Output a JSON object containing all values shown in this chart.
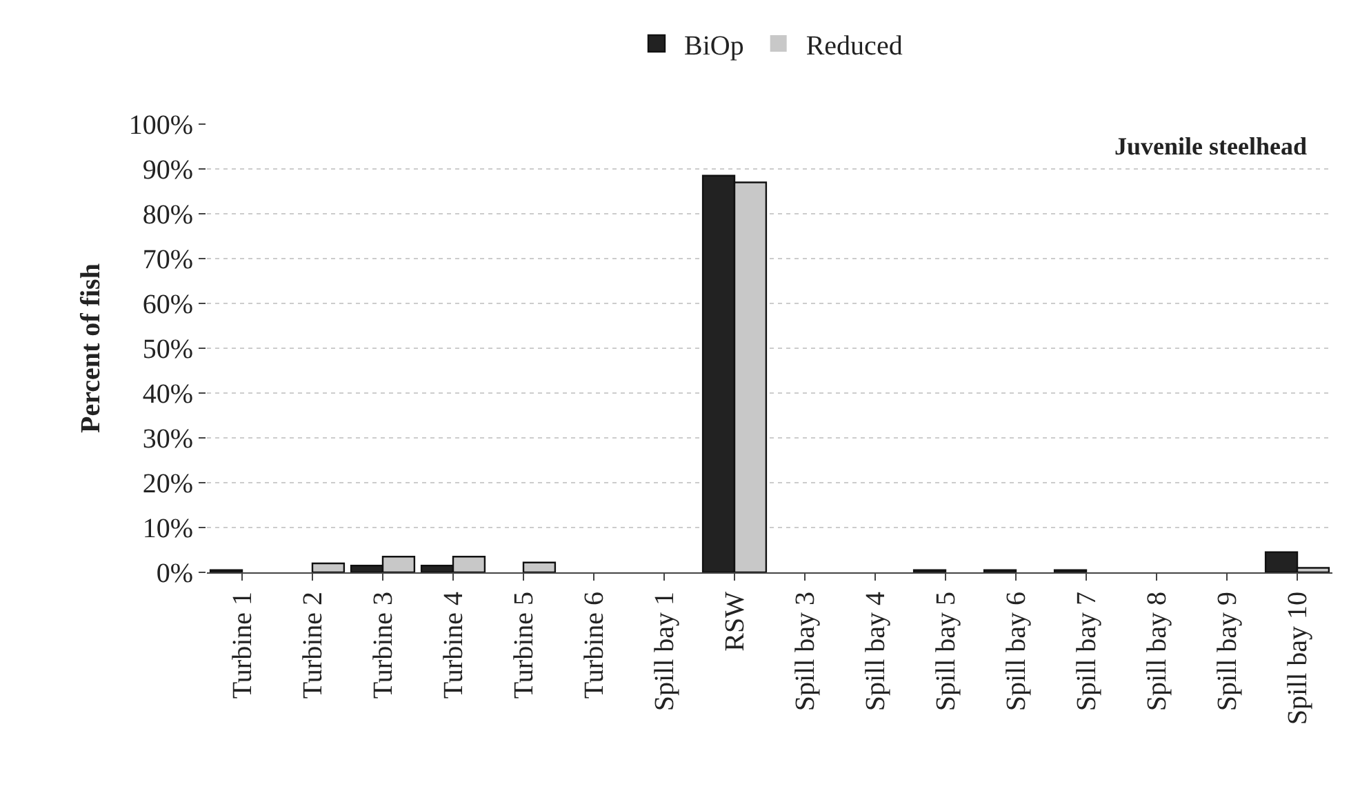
{
  "chart_data": {
    "type": "bar",
    "ylabel": "Percent of fish",
    "categories": [
      "Turbine 1",
      "Turbine 2",
      "Turbine 3",
      "Turbine 4",
      "Turbine 5",
      "Turbine 6",
      "Spill bay 1",
      "RSW",
      "Spill bay 3",
      "Spill bay 4",
      "Spill bay 5",
      "Spill bay 6",
      "Spill bay 7",
      "Spill bay 8",
      "Spill bay 9",
      "Spill bay 10"
    ],
    "series": [
      {
        "name": "BiOp",
        "color": "#222222",
        "values": [
          0.5,
          0,
          1.5,
          1.5,
          0,
          0,
          0,
          88.5,
          0,
          0,
          0.5,
          0.5,
          0.5,
          0,
          0,
          4.5
        ]
      },
      {
        "name": "Reduced",
        "color": "#c8c8c8",
        "values": [
          0,
          2,
          3.5,
          3.5,
          2.2,
          0,
          0,
          87,
          0,
          0,
          0,
          0,
          0,
          0,
          0,
          1
        ]
      }
    ],
    "ylim": [
      0,
      100
    ],
    "yticks": [
      {
        "value": 0,
        "label": "0%"
      },
      {
        "value": 10,
        "label": "10%"
      },
      {
        "value": 20,
        "label": "20%"
      },
      {
        "value": 30,
        "label": "30%"
      },
      {
        "value": 40,
        "label": "40%"
      },
      {
        "value": 50,
        "label": "50%"
      },
      {
        "value": 60,
        "label": "60%"
      },
      {
        "value": 70,
        "label": "70%"
      },
      {
        "value": 80,
        "label": "80%"
      },
      {
        "value": 90,
        "label": "90%"
      },
      {
        "value": 100,
        "label": "100%"
      }
    ],
    "grid": "y",
    "legend": "top",
    "annotations": [
      "Juvenile steelhead"
    ]
  }
}
